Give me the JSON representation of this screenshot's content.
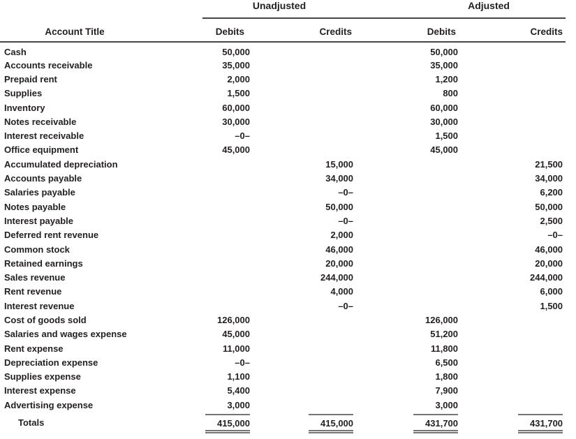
{
  "table": {
    "groups": [
      "Unadjusted",
      "Adjusted"
    ],
    "headers": [
      "Account Title",
      "Debits",
      "Credits",
      "Debits",
      "Credits"
    ],
    "rows": [
      {
        "account": "Cash",
        "ud": "50,000",
        "uc": "",
        "ad": "50,000",
        "ac": ""
      },
      {
        "account": "Accounts receivable",
        "ud": "35,000",
        "uc": "",
        "ad": "35,000",
        "ac": ""
      },
      {
        "account": "Prepaid rent",
        "ud": "2,000",
        "uc": "",
        "ad": "1,200",
        "ac": ""
      },
      {
        "account": "Supplies",
        "ud": "1,500",
        "uc": "",
        "ad": "800",
        "ac": ""
      },
      {
        "account": "Inventory",
        "ud": "60,000",
        "uc": "",
        "ad": "60,000",
        "ac": ""
      },
      {
        "account": "Notes receivable",
        "ud": "30,000",
        "uc": "",
        "ad": "30,000",
        "ac": ""
      },
      {
        "account": "Interest receivable",
        "ud": "–0–",
        "uc": "",
        "ad": "1,500",
        "ac": ""
      },
      {
        "account": "Office equipment",
        "ud": "45,000",
        "uc": "",
        "ad": "45,000",
        "ac": ""
      },
      {
        "account": "Accumulated depreciation",
        "ud": "",
        "uc": "15,000",
        "ad": "",
        "ac": "21,500"
      },
      {
        "account": "Accounts payable",
        "ud": "",
        "uc": "34,000",
        "ad": "",
        "ac": "34,000"
      },
      {
        "account": "Salaries payable",
        "ud": "",
        "uc": "–0–",
        "ad": "",
        "ac": "6,200"
      },
      {
        "account": "Notes payable",
        "ud": "",
        "uc": "50,000",
        "ad": "",
        "ac": "50,000"
      },
      {
        "account": "Interest payable",
        "ud": "",
        "uc": "–0–",
        "ad": "",
        "ac": "2,500"
      },
      {
        "account": "Deferred rent revenue",
        "ud": "",
        "uc": "2,000",
        "ad": "",
        "ac": "–0–"
      },
      {
        "account": "Common stock",
        "ud": "",
        "uc": "46,000",
        "ad": "",
        "ac": "46,000"
      },
      {
        "account": "Retained earnings",
        "ud": "",
        "uc": "20,000",
        "ad": "",
        "ac": "20,000"
      },
      {
        "account": "Sales revenue",
        "ud": "",
        "uc": "244,000",
        "ad": "",
        "ac": "244,000"
      },
      {
        "account": "Rent revenue",
        "ud": "",
        "uc": "4,000",
        "ad": "",
        "ac": "6,000"
      },
      {
        "account": "Interest revenue",
        "ud": "",
        "uc": "–0–",
        "ad": "",
        "ac": "1,500"
      },
      {
        "account": "Cost of goods sold",
        "ud": "126,000",
        "uc": "",
        "ad": "126,000",
        "ac": ""
      },
      {
        "account": "Salaries and wages expense",
        "ud": "45,000",
        "uc": "",
        "ad": "51,200",
        "ac": ""
      },
      {
        "account": "Rent expense",
        "ud": "11,000",
        "uc": "",
        "ad": "11,800",
        "ac": ""
      },
      {
        "account": "Depreciation expense",
        "ud": "–0–",
        "uc": "",
        "ad": "6,500",
        "ac": ""
      },
      {
        "account": "Supplies expense",
        "ud": "1,100",
        "uc": "",
        "ad": "1,800",
        "ac": ""
      },
      {
        "account": "Interest expense",
        "ud": "5,400",
        "uc": "",
        "ad": "7,900",
        "ac": ""
      },
      {
        "account": "Advertising expense",
        "ud": "3,000",
        "uc": "",
        "ad": "3,000",
        "ac": ""
      }
    ],
    "totals": {
      "label": "Totals",
      "ud": "415,000",
      "uc": "415,000",
      "ad": "431,700",
      "ac": "431,700"
    }
  },
  "colors": {
    "text": "#231f20",
    "header_rule": "#454545",
    "totals_rule": "#757575",
    "background": "#ffffff"
  }
}
